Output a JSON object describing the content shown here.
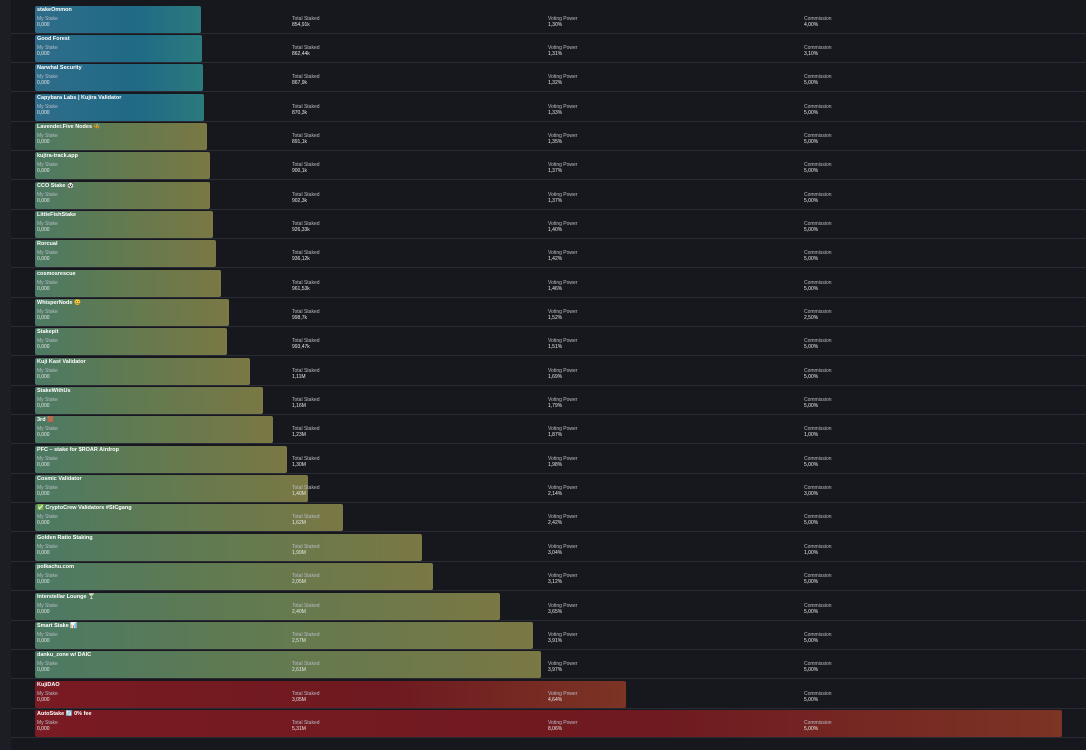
{
  "labels": {
    "my_stake": "My Stake",
    "total_staked": "Total Staked",
    "voting_power": "Voting Power",
    "commission": "Commission"
  },
  "rows": [
    {
      "name": "stakeOmmon",
      "my_stake": "0,000",
      "total_staked": "854,91k",
      "voting_power": {
        "value": 1.3,
        "label": "1,30%"
      },
      "commission": "4,00%"
    },
    {
      "name": "Good Forest",
      "my_stake": "0,000",
      "total_staked": "862,44k",
      "voting_power": {
        "value": 1.31,
        "label": "1,31%"
      },
      "commission": "3,10%"
    },
    {
      "name": "Narwhal Security",
      "my_stake": "0,000",
      "total_staked": "867,9k",
      "voting_power": {
        "value": 1.32,
        "label": "1,32%"
      },
      "commission": "5,00%"
    },
    {
      "name": "Capybara Labs | Kujira Validator",
      "my_stake": "0,000",
      "total_staked": "870,3k",
      "voting_power": {
        "value": 1.33,
        "label": "1,33%"
      },
      "commission": "5,00%"
    },
    {
      "name": "Lavender.Five Nodes 🐝",
      "my_stake": "0,000",
      "total_staked": "891,1k",
      "voting_power": {
        "value": 1.35,
        "label": "1,35%"
      },
      "commission": "5,00%"
    },
    {
      "name": "kujira-track.app",
      "my_stake": "0,000",
      "total_staked": "900,1k",
      "voting_power": {
        "value": 1.37,
        "label": "1,37%"
      },
      "commission": "5,00%"
    },
    {
      "name": "CCO Stake 🐼",
      "my_stake": "0,000",
      "total_staked": "902,3k",
      "voting_power": {
        "value": 1.37,
        "label": "1,37%"
      },
      "commission": "5,00%"
    },
    {
      "name": "LittleFishStake",
      "my_stake": "0,000",
      "total_staked": "926,33k",
      "voting_power": {
        "value": 1.4,
        "label": "1,40%"
      },
      "commission": "5,00%"
    },
    {
      "name": "Rorcual",
      "my_stake": "0,000",
      "total_staked": "936,12k",
      "voting_power": {
        "value": 1.42,
        "label": "1,42%"
      },
      "commission": "5,00%"
    },
    {
      "name": "cosmosrescue",
      "my_stake": "0,000",
      "total_staked": "961,53k",
      "voting_power": {
        "value": 1.46,
        "label": "1,46%"
      },
      "commission": "5,00%"
    },
    {
      "name": "WhisperNode 🤐",
      "my_stake": "0,000",
      "total_staked": "998,7k",
      "voting_power": {
        "value": 1.52,
        "label": "1,52%"
      },
      "commission": "2,50%"
    },
    {
      "name": "Stakepit",
      "my_stake": "0,000",
      "total_staked": "993,47k",
      "voting_power": {
        "value": 1.51,
        "label": "1,51%"
      },
      "commission": "5,00%"
    },
    {
      "name": "Kuji Kast Validator",
      "my_stake": "0,000",
      "total_staked": "1,11M",
      "voting_power": {
        "value": 1.69,
        "label": "1,69%"
      },
      "commission": "5,00%"
    },
    {
      "name": "StakeWithUs",
      "my_stake": "0,000",
      "total_staked": "1,16M",
      "voting_power": {
        "value": 1.79,
        "label": "1,79%"
      },
      "commission": "5,00%"
    },
    {
      "name": "3rd 🟫",
      "my_stake": "0,000",
      "total_staked": "1,23M",
      "voting_power": {
        "value": 1.87,
        "label": "1,87%"
      },
      "commission": "1,00%"
    },
    {
      "name": "PFC – stake for $ROAR Airdrop",
      "my_stake": "0,000",
      "total_staked": "1,30M",
      "voting_power": {
        "value": 1.98,
        "label": "1,98%"
      },
      "commission": "5,00%"
    },
    {
      "name": "Cosmic Validator",
      "my_stake": "0,000",
      "total_staked": "1,40M",
      "voting_power": {
        "value": 2.14,
        "label": "2,14%"
      },
      "commission": "3,00%"
    },
    {
      "name": "✅ CryptoCrew Validators #StCgang",
      "my_stake": "0,000",
      "total_staked": "1,62M",
      "voting_power": {
        "value": 2.42,
        "label": "2,42%"
      },
      "commission": "5,00%"
    },
    {
      "name": "Golden Ratio Staking",
      "my_stake": "0,000",
      "total_staked": "1,99M",
      "voting_power": {
        "value": 3.04,
        "label": "3,04%"
      },
      "commission": "1,00%"
    },
    {
      "name": "polkachu.com",
      "my_stake": "0,000",
      "total_staked": "2,05M",
      "voting_power": {
        "value": 3.12,
        "label": "3,12%"
      },
      "commission": "5,00%"
    },
    {
      "name": "Interstellar Lounge 🍸",
      "my_stake": "0,000",
      "total_staked": "2,40M",
      "voting_power": {
        "value": 3.65,
        "label": "3,65%"
      },
      "commission": "5,00%"
    },
    {
      "name": "Smart Stake 📊",
      "my_stake": "0,000",
      "total_staked": "2,57M",
      "voting_power": {
        "value": 3.91,
        "label": "3,91%"
      },
      "commission": "5,00%"
    },
    {
      "name": "danku_zone w/ DAIC",
      "my_stake": "0,000",
      "total_staked": "2,61M",
      "voting_power": {
        "value": 3.97,
        "label": "3,97%"
      },
      "commission": "5,00%"
    },
    {
      "name": "KujiDAO",
      "my_stake": "0,000",
      "total_staked": "3,05M",
      "voting_power": {
        "value": 4.64,
        "label": "4,64%"
      },
      "commission": "5,00%"
    },
    {
      "name": "AutoStake 🔄 0% fee",
      "my_stake": "0,000",
      "total_staked": "5,31M",
      "voting_power": {
        "value": 8.06,
        "label": "8,06%"
      },
      "commission": "5,00%"
    }
  ]
}
